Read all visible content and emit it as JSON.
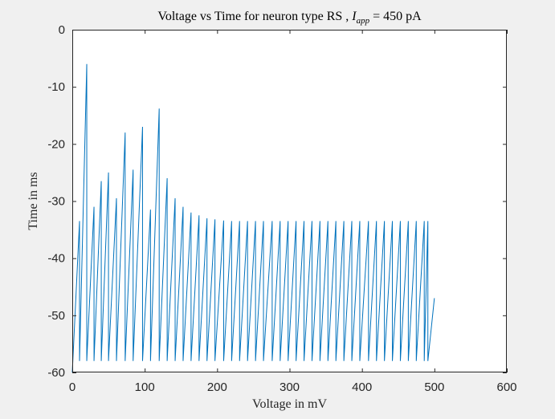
{
  "chart_data": {
    "type": "line",
    "title": "Voltage vs Time for neuron type RS , I_app = 450 pA",
    "title_parts": {
      "prefix": "Voltage vs Time for neuron type RS , ",
      "var_main": "I",
      "var_sub": "app",
      "suffix": " = 450 pA"
    },
    "xlabel": "Voltage in mV",
    "ylabel": "Time in ms",
    "xlim": [
      0,
      600
    ],
    "ylim": [
      -60,
      0
    ],
    "x_ticks": [
      0,
      100,
      200,
      300,
      400,
      500,
      600
    ],
    "y_ticks": [
      0,
      -10,
      -20,
      -30,
      -40,
      -50,
      -60
    ],
    "x_tick_labels": [
      "0",
      "100",
      "200",
      "300",
      "400",
      "500",
      "600"
    ],
    "y_tick_labels": [
      "0",
      "-10",
      "-20",
      "-30",
      "-40",
      "-50",
      "-60"
    ],
    "grid": false,
    "line_color": "#0072BD",
    "reset_voltage": -58,
    "start_voltage": -60,
    "end": {
      "x": 500,
      "y": -47
    },
    "spikes": {
      "times": [
        10,
        20,
        30,
        40,
        50,
        61,
        73,
        84,
        97,
        108,
        120,
        131,
        142,
        153,
        164,
        175,
        186,
        197,
        209,
        220,
        231,
        242,
        253,
        264,
        276,
        287,
        298,
        309,
        320,
        331,
        342,
        353,
        364,
        375,
        386,
        397,
        409,
        420,
        431,
        442,
        453,
        464,
        475,
        486,
        491
      ],
      "peaks": [
        -33.5,
        -6,
        -31,
        -26.5,
        -25,
        -29.5,
        -18,
        -24.5,
        -17,
        -31.5,
        -13.8,
        -26,
        -29.5,
        -31,
        -32,
        -32.5,
        -33,
        -33.2,
        -33.4,
        -33.5,
        -33.5,
        -33.5,
        -33.5,
        -33.5,
        -33.5,
        -33.5,
        -33.5,
        -33.5,
        -33.5,
        -33.5,
        -33.5,
        -33.5,
        -33.5,
        -33.5,
        -33.5,
        -33.5,
        -33.5,
        -33.5,
        -33.5,
        -33.5,
        -33.5,
        -33.5,
        -33.5,
        -33.5,
        -33.5
      ]
    }
  }
}
